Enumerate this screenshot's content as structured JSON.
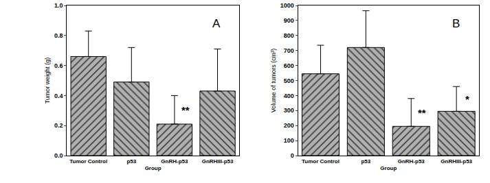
{
  "chart_data": [
    {
      "type": "bar",
      "x_label": "Group",
      "y_label": "Tumor weight (g)",
      "categories": [
        "Tumor Control",
        "p53",
        "GnRH-p53",
        "GnRHIII-p53"
      ],
      "values": [
        0.66,
        0.49,
        0.21,
        0.43
      ],
      "errors": [
        0.17,
        0.23,
        0.19,
        0.28
      ],
      "color": "#b0b0b0",
      "ylim": [
        0,
        1.0
      ],
      "yticks": [
        {
          "value": 0,
          "label": "0.0"
        },
        0.2,
        0.4,
        0.6,
        0.8,
        {
          "value": 1.0,
          "label": "1.0"
        }
      ],
      "annotations": [
        {
          "text": "A"
        },
        {
          "text": "**",
          "category": "GnRH-p53"
        }
      ]
    },
    {
      "type": "bar",
      "x_label": "Group",
      "y_label": "Volume of tumors (cm³)",
      "categories": [
        "Tumor Control",
        "p53",
        "GnRH-p53",
        "GnRHIII-p53"
      ],
      "values": [
        545,
        720,
        195,
        295
      ],
      "errors": [
        190,
        245,
        185,
        165
      ],
      "color": "#b0b0b0",
      "ylim": [
        0,
        1000
      ],
      "yticks": [
        0,
        100,
        200,
        300,
        400,
        500,
        600,
        700,
        800,
        900,
        1000
      ],
      "annotations": [
        {
          "text": "B"
        },
        {
          "text": "**",
          "category": "GnRH-p53"
        },
        {
          "text": "*",
          "category": "GnRHIII-p53"
        }
      ]
    }
  ]
}
